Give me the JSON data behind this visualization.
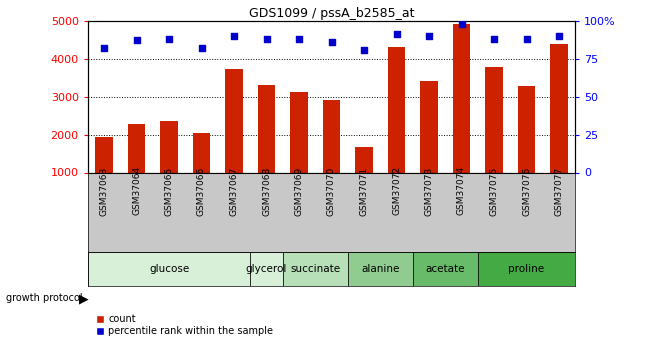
{
  "title": "GDS1099 / pssA_b2585_at",
  "samples": [
    "GSM37063",
    "GSM37064",
    "GSM37065",
    "GSM37066",
    "GSM37067",
    "GSM37068",
    "GSM37069",
    "GSM37070",
    "GSM37071",
    "GSM37072",
    "GSM37073",
    "GSM37074",
    "GSM37075",
    "GSM37076",
    "GSM37077"
  ],
  "counts": [
    1930,
    2270,
    2360,
    2040,
    3730,
    3300,
    3130,
    2900,
    1660,
    4320,
    3400,
    4920,
    3780,
    3270,
    4390
  ],
  "percentiles": [
    82,
    87,
    88,
    82,
    90,
    88,
    88,
    86,
    81,
    91,
    90,
    98,
    88,
    88,
    90
  ],
  "group_spans": [
    {
      "name": "glucose",
      "start": 0,
      "end": 4,
      "color": "#d8f0d8"
    },
    {
      "name": "glycerol",
      "start": 5,
      "end": 5,
      "color": "#d8f0d8"
    },
    {
      "name": "succinate",
      "start": 6,
      "end": 7,
      "color": "#b8e0b8"
    },
    {
      "name": "alanine",
      "start": 8,
      "end": 9,
      "color": "#90cc90"
    },
    {
      "name": "acetate",
      "start": 10,
      "end": 11,
      "color": "#68bb68"
    },
    {
      "name": "proline",
      "start": 12,
      "end": 14,
      "color": "#44aa44"
    }
  ],
  "bar_color": "#cc2200",
  "dot_color": "#0000cc",
  "sample_label_bg": "#c8c8c8",
  "bar_baseline": 1000,
  "ylim_left": [
    1000,
    5000
  ],
  "ylim_right": [
    0,
    100
  ],
  "yticks_left": [
    1000,
    2000,
    3000,
    4000,
    5000
  ],
  "yticks_right": [
    0,
    25,
    50,
    75,
    100
  ],
  "ytick_labels_right": [
    "0",
    "25",
    "50",
    "75",
    "100%"
  ]
}
